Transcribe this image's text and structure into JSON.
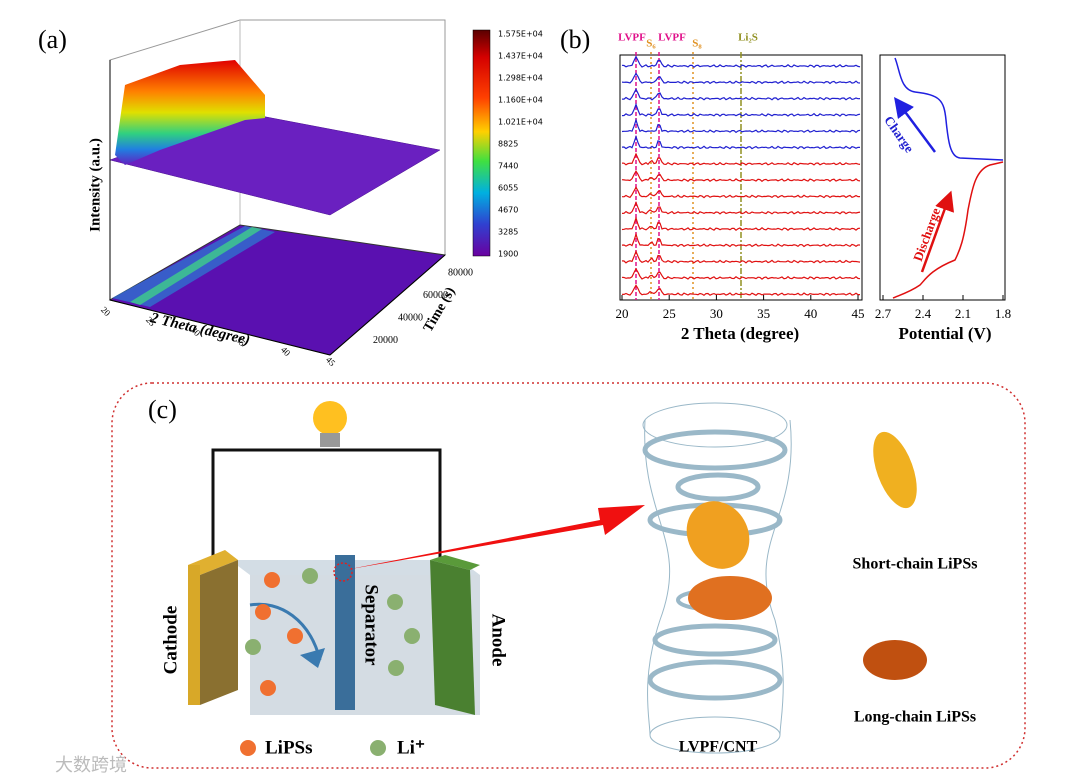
{
  "panel_labels": [
    "(a)",
    "(b)",
    "(c)"
  ],
  "panel_a": {
    "y_axis_label": "Intensity (a.u.)",
    "x_axis_label": "2 Theta (degree)",
    "z_axis_label": "Time (s)",
    "x_ticks": [
      20,
      25,
      30,
      35,
      40,
      45
    ],
    "z_ticks": [
      20000,
      40000,
      60000,
      80000
    ],
    "colorbar_labels": [
      "1.575E+04",
      "1.437E+04",
      "1.298E+04",
      "1.160E+04",
      "1.021E+04",
      "8825",
      "7440",
      "6055",
      "4670",
      "3285",
      "1900"
    ]
  },
  "panel_b": {
    "peak_labels": [
      "LVPF",
      "S₆",
      "LVPF",
      "S₈",
      "Li₂S"
    ],
    "x_axis_label": "2 Theta (degree)",
    "x_ticks": [
      20,
      25,
      30,
      35,
      40,
      45
    ],
    "potential_axis_label": "Potential (V)",
    "potential_ticks": [
      2.7,
      2.4,
      2.1,
      1.8
    ],
    "charge_label": "Charge",
    "discharge_label": "Discharge"
  },
  "panel_c": {
    "cathode_label": "Cathode",
    "separator_label": "Separator",
    "anode_label": "Anode",
    "legend": [
      "LiPSs",
      "Li⁺"
    ],
    "cage_label": "LVPF/CNT",
    "short_chain_label": "Short-chain LiPSs",
    "long_chain_label": "Long-chain LiPSs"
  },
  "watermark": "大数跨境"
}
